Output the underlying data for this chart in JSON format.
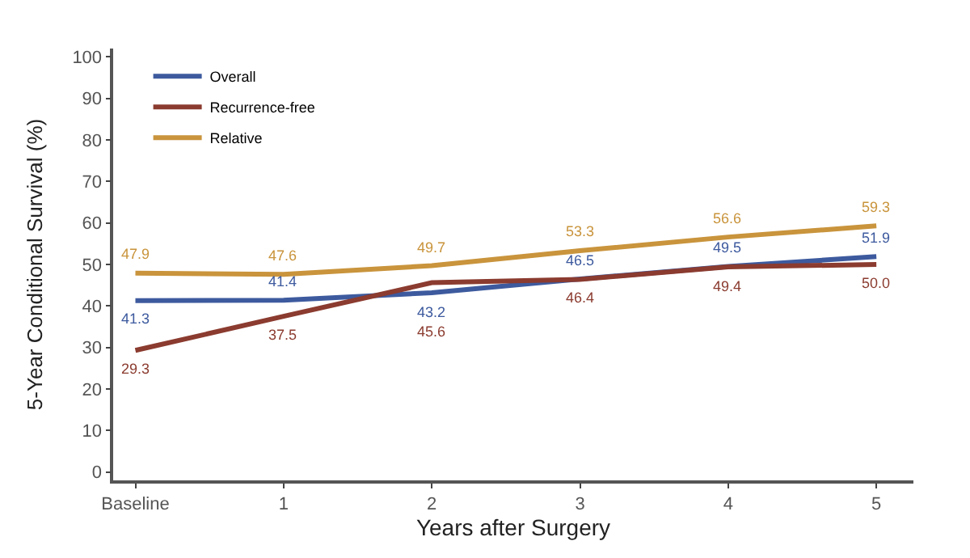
{
  "chart_data": {
    "type": "line",
    "xlabel": "Years after Surgery",
    "ylabel": "5-Year Conditional Survival (%)",
    "categories": [
      "Baseline",
      "1",
      "2",
      "3",
      "4",
      "5"
    ],
    "series": [
      {
        "name": "Overall",
        "color": "#3d5a9e",
        "values": [
          41.3,
          41.4,
          43.2,
          46.5,
          49.5,
          51.9
        ],
        "value_labels": [
          "41.3",
          "41.4",
          "43.2",
          "46.5",
          "49.5",
          "51.9"
        ]
      },
      {
        "name": "Recurrence-free",
        "color": "#8b3b2f",
        "values": [
          29.3,
          37.5,
          45.6,
          46.4,
          49.4,
          50.0
        ],
        "value_labels": [
          "29.3",
          "37.5",
          "45.6",
          "46.4",
          "49.4",
          "50.0"
        ]
      },
      {
        "name": "Relative",
        "color": "#c9943c",
        "values": [
          47.9,
          47.6,
          49.7,
          53.3,
          56.6,
          59.3
        ],
        "value_labels": [
          "47.9",
          "47.6",
          "49.7",
          "53.3",
          "56.6",
          "59.3"
        ]
      }
    ],
    "ylim": [
      -2,
      102
    ],
    "yticks": [
      0,
      10,
      20,
      30,
      40,
      50,
      60,
      70,
      80,
      90,
      100
    ],
    "grid": false,
    "legend": "top left",
    "marker": "none",
    "line_style": "solid"
  }
}
